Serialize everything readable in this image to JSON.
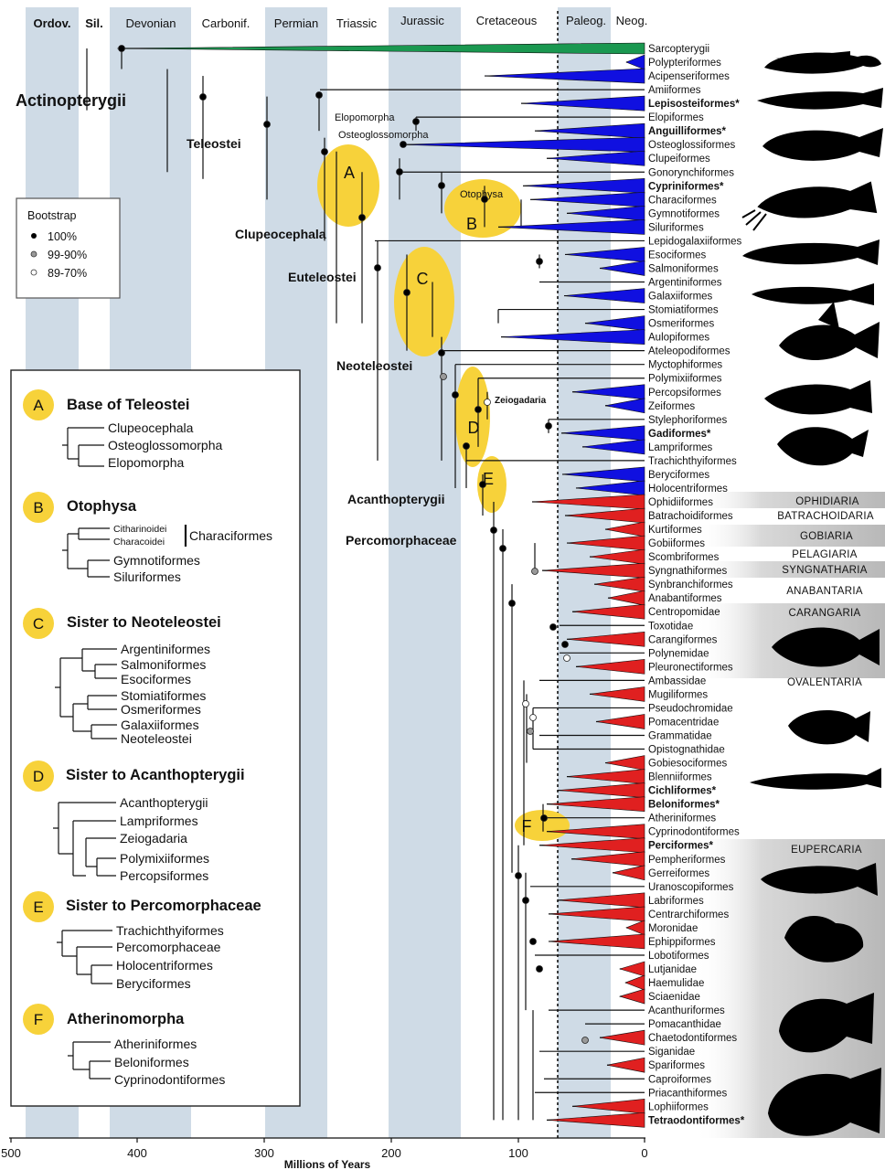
{
  "periods": [
    "Ordov.",
    "Sil.",
    "Devonian",
    "Carbonif.",
    "Permian",
    "Triassic",
    "Jurassic",
    "Cretaceous",
    "Paleog.",
    "Neog."
  ],
  "axis": {
    "title": "Millions of Years",
    "ticks": [
      "500",
      "400",
      "300",
      "200",
      "100",
      "0"
    ]
  },
  "colors": {
    "sarcopterygii": "#1a9850",
    "non_acanthopterygian": "#1010e0",
    "acanthopterygian": "#e02020",
    "ellipse": "#f7d23a",
    "period_band": "#cfdbe6"
  },
  "clades": {
    "actinopterygii": "Actinopterygii",
    "teleostei": "Teleostei",
    "elopomorpha": "Elopomorpha",
    "osteoglossomorpha": "Osteoglossomorpha",
    "otophysa": "Otophysa",
    "clupeocephala": "Clupeocephala",
    "euteleostei": "Euteleostei",
    "neoteleostei": "Neoteleostei",
    "zeiogadaria": "Zeiogadaria",
    "acanthopterygii": "Acanthopterygii",
    "percomorphaceae": "Percomorphaceae"
  },
  "ellipse_labels": [
    "A",
    "B",
    "C",
    "D",
    "E",
    "F"
  ],
  "taxa": [
    "Sarcopterygii",
    "Polypteriformes",
    "Acipenseriformes",
    "Amiiformes",
    "Lepisosteiformes*",
    "Elopiformes",
    "Anguilliformes*",
    "Osteoglossiformes",
    "Clupeiformes",
    "Gonorynchiformes",
    "Cypriniformes*",
    "Characiformes",
    "Gymnotiformes",
    "Siluriformes",
    "Lepidogalaxiiformes",
    "Esociformes",
    "Salmoniformes",
    "Argentiniformes",
    "Galaxiiformes",
    "Stomiatiformes",
    "Osmeriformes",
    "Aulopiformes",
    "Ateleopodiformes",
    "Myctophiformes",
    "Polymixiiformes",
    "Percopsiformes",
    "Zeiformes",
    "Stylephoriformes",
    "Gadiformes*",
    "Lampriformes",
    "Trachichthyiformes",
    "Beryciformes",
    "Holocentriformes",
    "Ophidiiformes",
    "Batrachoidiformes",
    "Kurtiformes",
    "Gobiiformes",
    "Scombriformes",
    "Syngnathiformes",
    "Synbranchiformes",
    "Anabantiformes",
    "Centropomidae",
    "Toxotidae",
    "Carangiformes",
    "Polynemidae",
    "Pleuronectiformes",
    "Ambassidae",
    "Mugiliformes",
    "Pseudochromidae",
    "Pomacentridae",
    "Grammatidae",
    "Opistognathidae",
    "Gobiesociformes",
    "Blenniiformes",
    "Cichliformes*",
    "Beloniformes*",
    "Atheriniformes",
    "Cyprinodontiformes",
    "Perciformes*",
    "Pempheriformes",
    "Gerreiformes",
    "Uranoscopiformes",
    "Labriformes",
    "Centrarchiformes",
    "Moronidae",
    "Ephippiformes",
    "Lobotiformes",
    "Lutjanidae",
    "Haemulidae",
    "Sciaenidae",
    "Acanthuriformes",
    "Pomacanthidae",
    "Chaetodontiformes",
    "Siganidae",
    "Spariformes",
    "Caproiformes",
    "Priacanthiformes",
    "Lophiiformes",
    "Tetraodontiformes*"
  ],
  "groups": [
    "OPHIDIARIA",
    "BATRACHOIDARIA",
    "GOBIARIA",
    "PELAGIARIA",
    "SYNGNATHARIA",
    "ANABANTARIA",
    "CARANGARIA",
    "OVALENTARIA",
    "EUPERCARIA"
  ],
  "legend": {
    "title": "Bootstrap",
    "items": [
      "100%",
      "99-90%",
      "89-70%"
    ]
  },
  "inset": {
    "panels": [
      {
        "letter": "A",
        "title": "Base of Teleostei",
        "tips": [
          "Clupeocephala",
          "Osteoglossomorpha",
          "Elopomorpha"
        ]
      },
      {
        "letter": "B",
        "title": "Otophysa",
        "tips": [
          "Citharinoidei",
          "Characoidei",
          "Gymnotiformes",
          "Siluriformes"
        ],
        "bracket": "Characiformes"
      },
      {
        "letter": "C",
        "title": "Sister to Neoteleostei",
        "tips": [
          "Argentiniformes",
          "Salmoniformes",
          "Esociformes",
          "Stomiatiformes",
          "Osmeriformes",
          "Galaxiiformes",
          "Neoteleostei"
        ]
      },
      {
        "letter": "D",
        "title": "Sister to Acanthopterygii",
        "tips": [
          "Acanthopterygii",
          "Lampriformes",
          "Zeiogadaria",
          "Polymixiiformes",
          "Percopsiformes"
        ]
      },
      {
        "letter": "E",
        "title": "Sister to Percomorphaceae",
        "tips": [
          "Trachichthyiformes",
          "Percomorphaceae",
          "Holocentriformes",
          "Beryciformes"
        ]
      },
      {
        "letter": "F",
        "title": "Atherinomorpha",
        "tips": [
          "Atheriniformes",
          "Beloniformes",
          "Cyprinodontiformes"
        ]
      }
    ]
  }
}
